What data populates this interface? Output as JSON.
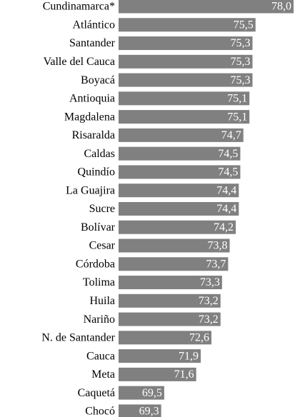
{
  "chart_data": {
    "type": "bar",
    "orientation": "horizontal",
    "categories": [
      "Cundinamarca*",
      "Atlántico",
      "Santander",
      "Valle del Cauca",
      "Boyacá",
      "Antioquia",
      "Magdalena",
      "Risaralda",
      "Caldas",
      "Quindío",
      "La Guajira",
      "Sucre",
      "Bolívar",
      "Cesar",
      "Córdoba",
      "Tolima",
      "Huila",
      "Nariño",
      "N. de Santander",
      "Cauca",
      "Meta",
      "Caquetá",
      "Chocó"
    ],
    "values": [
      78.0,
      75.5,
      75.3,
      75.3,
      75.3,
      75.1,
      75.1,
      74.7,
      74.5,
      74.5,
      74.4,
      74.4,
      74.2,
      73.8,
      73.7,
      73.3,
      73.2,
      73.2,
      72.6,
      71.9,
      71.6,
      69.5,
      69.3
    ],
    "value_labels": [
      "78,0",
      "75,5",
      "75,3",
      "75,3",
      "75,3",
      "75,1",
      "75,1",
      "74,7",
      "74,5",
      "74,5",
      "74,4",
      "74,4",
      "74,2",
      "73,8",
      "73,7",
      "73,3",
      "73,2",
      "73,2",
      "72,6",
      "71,9",
      "71,6",
      "69,5",
      "69,3"
    ],
    "color": "#808080",
    "xlim": [
      66.5,
      78
    ]
  }
}
